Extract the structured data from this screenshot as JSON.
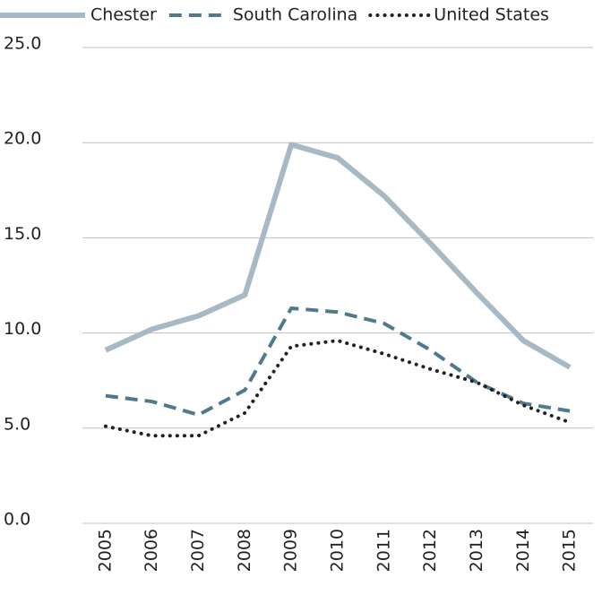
{
  "chart_data": {
    "type": "line",
    "categories": [
      "2005",
      "2006",
      "2007",
      "2008",
      "2009",
      "2010",
      "2011",
      "2012",
      "2013",
      "2014",
      "2015"
    ],
    "series": [
      {
        "name": "Chester",
        "color": "#a7b9c4",
        "line_style": "solid",
        "values": [
          9.1,
          10.2,
          10.9,
          12.0,
          19.9,
          19.2,
          17.2,
          14.7,
          12.1,
          9.6,
          8.2
        ]
      },
      {
        "name": "South Carolina",
        "color": "#4f7a8c",
        "line_style": "dashed",
        "values": [
          6.7,
          6.4,
          5.7,
          7.0,
          11.3,
          11.1,
          10.5,
          9.1,
          7.4,
          6.3,
          5.9
        ]
      },
      {
        "name": "United States",
        "color": "#222222",
        "line_style": "dotted",
        "values": [
          5.1,
          4.6,
          4.6,
          5.8,
          9.3,
          9.6,
          8.9,
          8.1,
          7.4,
          6.2,
          5.3
        ]
      }
    ],
    "ylim": [
      0,
      25
    ],
    "yticks": [
      {
        "value": 0,
        "label": "0.0"
      },
      {
        "value": 5,
        "label": "5.0"
      },
      {
        "value": 10,
        "label": "10.0"
      },
      {
        "value": 15,
        "label": "15.0"
      },
      {
        "value": 20,
        "label": "20.0"
      },
      {
        "value": 25,
        "label": "25.0"
      }
    ],
    "grid": true,
    "legend": "top"
  }
}
